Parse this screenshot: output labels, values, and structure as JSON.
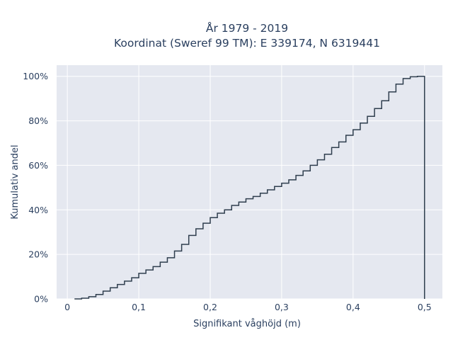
{
  "chart_data": {
    "type": "line",
    "line_shape": "step",
    "title": "År 1979 - 2019",
    "subtitle": "Koordinat (Sweref 99 TM): E 339174, N 6319441",
    "xlabel": "Signifikant våghöjd (m)",
    "ylabel": "Kumulativ andel",
    "xlim": [
      -0.015,
      0.525
    ],
    "ylim": [
      0,
      1.05
    ],
    "x_ticks": [
      0,
      0.1,
      0.2,
      0.3,
      0.4,
      0.5
    ],
    "x_tick_labels": [
      "0",
      "0,1",
      "0,2",
      "0,3",
      "0,4",
      "0,5"
    ],
    "y_ticks": [
      0,
      0.2,
      0.4,
      0.6,
      0.8,
      1.0
    ],
    "y_tick_labels": [
      "0%",
      "20%",
      "40%",
      "60%",
      "80%",
      "100%"
    ],
    "grid": true,
    "colors": {
      "plot_bg": "#e5e8f0",
      "grid": "#ffffff",
      "line": "#2f3e4e",
      "text": "#2a3f5f"
    },
    "series": [
      {
        "x": [
          0.01,
          0.02,
          0.03,
          0.04,
          0.05,
          0.06,
          0.07,
          0.08,
          0.09,
          0.1,
          0.11,
          0.12,
          0.13,
          0.14,
          0.15,
          0.16,
          0.17,
          0.18,
          0.19,
          0.2,
          0.21,
          0.22,
          0.23,
          0.24,
          0.25,
          0.26,
          0.27,
          0.28,
          0.29,
          0.3,
          0.31,
          0.32,
          0.33,
          0.34,
          0.35,
          0.36,
          0.37,
          0.38,
          0.39,
          0.4,
          0.41,
          0.42,
          0.43,
          0.44,
          0.45,
          0.46,
          0.47,
          0.48,
          0.49,
          0.5
        ],
        "y": [
          0.0,
          0.003,
          0.01,
          0.02,
          0.035,
          0.05,
          0.065,
          0.08,
          0.095,
          0.115,
          0.13,
          0.145,
          0.165,
          0.185,
          0.215,
          0.245,
          0.285,
          0.315,
          0.34,
          0.365,
          0.385,
          0.4,
          0.42,
          0.435,
          0.45,
          0.46,
          0.475,
          0.49,
          0.505,
          0.52,
          0.535,
          0.555,
          0.575,
          0.6,
          0.625,
          0.65,
          0.68,
          0.705,
          0.735,
          0.76,
          0.79,
          0.82,
          0.855,
          0.89,
          0.93,
          0.965,
          0.99,
          0.998,
          1.0,
          0.0
        ]
      }
    ]
  }
}
